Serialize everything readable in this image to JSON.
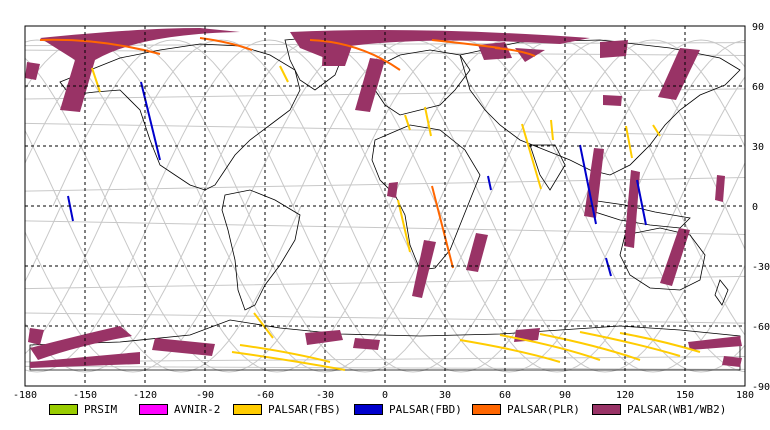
{
  "map": {
    "lon_ticks": [
      "-180",
      "-150",
      "-120",
      "-90",
      "-60",
      "-30",
      "0",
      "30",
      "60",
      "90",
      "120",
      "150",
      "180"
    ],
    "lat_ticks": [
      "90",
      "60",
      "30",
      "0",
      "-30",
      "-60",
      "-90"
    ],
    "colors": {
      "gridline": "#000000",
      "coastline": "#000000",
      "orbit_track": "#c8c8c8",
      "background": "#ffffff"
    }
  },
  "legend": [
    {
      "label": "PRSIM",
      "color": "#99cc00"
    },
    {
      "label": "AVNIR-2",
      "color": "#ff00ff"
    },
    {
      "label": "PALSAR(FBS)",
      "color": "#ffcc00"
    },
    {
      "label": "PALSAR(FBD)",
      "color": "#0000cc"
    },
    {
      "label": "PALSAR(PLR)",
      "color": "#ff6600"
    },
    {
      "label": "PALSAR(WB1/WB2)",
      "color": "#993366"
    }
  ]
}
